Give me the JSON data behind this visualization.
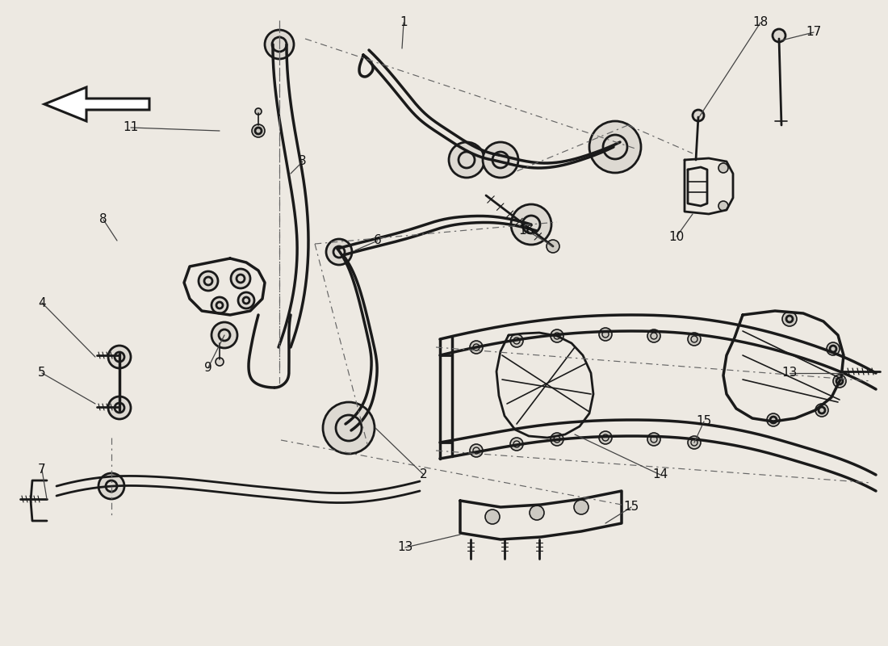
{
  "bg_color": "#ede9e2",
  "line_color": "#1a1a1a",
  "dash_color": "#666666",
  "lw_main": 2.0,
  "lw_thick": 2.5,
  "lw_thin": 1.2,
  "labels": [
    [
      "1",
      500,
      28
    ],
    [
      "2",
      525,
      588
    ],
    [
      "3",
      375,
      200
    ],
    [
      "4",
      52,
      375
    ],
    [
      "5",
      52,
      462
    ],
    [
      "6",
      468,
      298
    ],
    [
      "7",
      52,
      582
    ],
    [
      "8",
      128,
      272
    ],
    [
      "9",
      258,
      455
    ],
    [
      "10",
      838,
      293
    ],
    [
      "11",
      162,
      158
    ],
    [
      "13",
      502,
      678
    ],
    [
      "13",
      978,
      462
    ],
    [
      "14",
      818,
      588
    ],
    [
      "15",
      872,
      522
    ],
    [
      "15",
      782,
      628
    ],
    [
      "16",
      652,
      285
    ],
    [
      "17",
      1008,
      40
    ],
    [
      "18",
      942,
      28
    ]
  ]
}
